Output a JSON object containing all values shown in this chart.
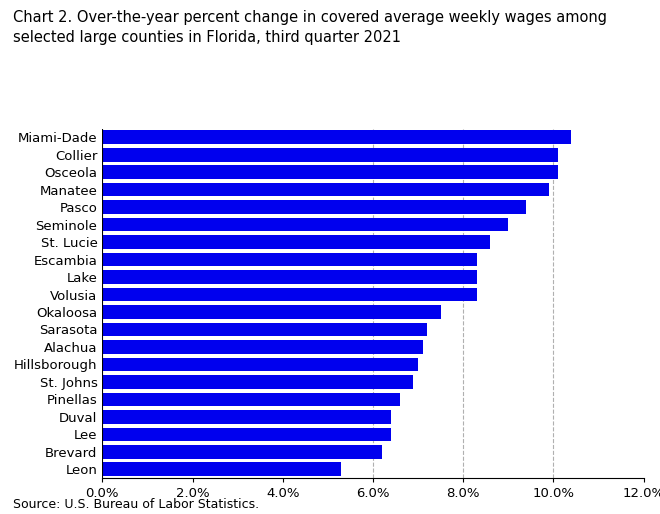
{
  "title_line1": "Chart 2. Over-the-year percent change in covered average weekly wages among",
  "title_line2": "selected large counties in Florida, third quarter 2021",
  "categories": [
    "Leon",
    "Brevard",
    "Lee",
    "Duval",
    "Pinellas",
    "St. Johns",
    "Hillsborough",
    "Alachua",
    "Sarasota",
    "Okaloosa",
    "Volusia",
    "Lake",
    "Escambia",
    "St. Lucie",
    "Seminole",
    "Pasco",
    "Manatee",
    "Osceola",
    "Collier",
    "Miami-Dade"
  ],
  "values": [
    5.3,
    6.2,
    6.4,
    6.4,
    6.6,
    6.9,
    7.0,
    7.1,
    7.2,
    7.5,
    8.3,
    8.3,
    8.3,
    8.6,
    9.0,
    9.4,
    9.9,
    10.1,
    10.1,
    10.4
  ],
  "bar_color": "#0000ee",
  "xlim": [
    0,
    12.0
  ],
  "xticks": [
    0,
    2.0,
    4.0,
    6.0,
    8.0,
    10.0,
    12.0
  ],
  "source": "Source: U.S. Bureau of Labor Statistics.",
  "bg_color": "#ffffff",
  "grid_color": "#b0b0b0",
  "dashed_lines": [
    6.0,
    8.0,
    10.0
  ],
  "title_fontsize": 10.5,
  "label_fontsize": 9.5,
  "tick_fontsize": 9.5,
  "source_fontsize": 9
}
